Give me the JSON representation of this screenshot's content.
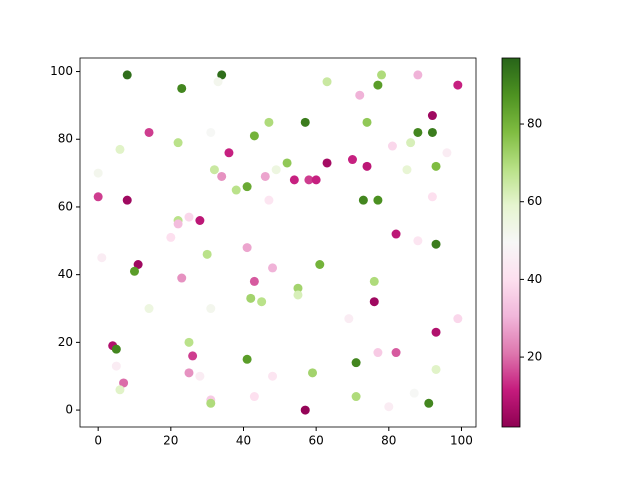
{
  "chart_data": {
    "type": "scatter",
    "x": [
      8,
      34,
      33,
      23,
      63,
      78,
      77,
      88,
      99,
      72,
      57,
      47,
      74,
      92,
      14,
      31,
      43,
      88,
      92,
      22,
      6,
      81,
      86,
      36,
      96,
      63,
      52,
      70,
      74,
      0,
      32,
      49,
      85,
      93,
      34,
      46,
      54,
      58,
      60,
      38,
      41,
      0,
      8,
      47,
      73,
      77,
      92,
      28,
      22,
      22,
      25,
      20,
      82,
      88,
      93,
      41,
      30,
      1,
      11,
      61,
      10,
      48,
      23,
      43,
      76,
      55,
      55,
      42,
      45,
      76,
      14,
      31,
      69,
      99,
      93,
      4,
      5,
      25,
      26,
      77,
      82,
      5,
      71,
      41,
      93,
      25,
      28,
      48,
      59,
      7,
      6,
      87,
      43,
      71,
      31,
      31,
      80,
      91,
      57
    ],
    "y": [
      99,
      99,
      97,
      95,
      97,
      99,
      96,
      99,
      96,
      93,
      85,
      85,
      85,
      87,
      82,
      82,
      81,
      82,
      82,
      79,
      77,
      78,
      79,
      76,
      76,
      73,
      73,
      74,
      72,
      70,
      71,
      71,
      71,
      72,
      69,
      69,
      68,
      68,
      68,
      65,
      66,
      63,
      62,
      62,
      62,
      62,
      63,
      56,
      56,
      55,
      57,
      51,
      52,
      50,
      49,
      48,
      46,
      45,
      43,
      43,
      41,
      42,
      39,
      38,
      38,
      36,
      34,
      33,
      32,
      32,
      30,
      30,
      27,
      27,
      23,
      19,
      18,
      20,
      16,
      17,
      17,
      13,
      14,
      15,
      12,
      11,
      10,
      10,
      11,
      8,
      6,
      5,
      4,
      4,
      3,
      2,
      1,
      2,
      0
    ],
    "color_values": [
      95,
      95,
      52,
      90,
      65,
      70,
      85,
      30,
      12,
      30,
      92,
      70,
      75,
      5,
      15,
      50,
      80,
      90,
      92,
      68,
      60,
      38,
      62,
      12,
      45,
      6,
      75,
      12,
      10,
      52,
      65,
      55,
      58,
      78,
      25,
      28,
      12,
      15,
      12,
      68,
      82,
      15,
      5,
      42,
      90,
      88,
      40,
      10,
      68,
      32,
      38,
      40,
      10,
      42,
      92,
      28,
      68,
      45,
      5,
      80,
      85,
      30,
      25,
      18,
      70,
      72,
      62,
      72,
      68,
      5,
      55,
      52,
      45,
      38,
      8,
      8,
      90,
      68,
      15,
      35,
      18,
      45,
      90,
      85,
      60,
      25,
      45,
      42,
      72,
      20,
      60,
      50,
      40,
      70,
      35,
      70,
      45,
      90,
      3
    ],
    "colormap": [
      "#8e0152",
      "#c51b7d",
      "#de77ae",
      "#f1b6da",
      "#fde0ef",
      "#f7f7f7",
      "#e6f5d0",
      "#b8e186",
      "#7fbc41",
      "#4d9221",
      "#276419"
    ],
    "clim": [
      2,
      97
    ],
    "cticks": [
      20,
      40,
      60,
      80
    ],
    "xlim": [
      -5,
      104
    ],
    "ylim": [
      -5,
      104
    ],
    "xticks": [
      0,
      20,
      40,
      60,
      80,
      100
    ],
    "yticks": [
      0,
      20,
      40,
      60,
      80,
      100
    ]
  }
}
